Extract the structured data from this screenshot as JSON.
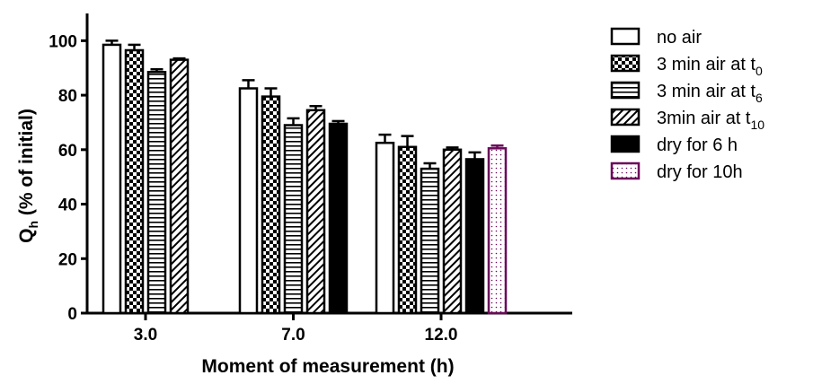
{
  "chart_data": {
    "type": "bar",
    "xlabel": "Moment of measurement (h)",
    "ylabel_main": "Q",
    "ylabel_sub": "h",
    "ylabel_rest": " (% of initial)",
    "ylim": [
      0,
      110
    ],
    "yticks": [
      "0",
      "20",
      "40",
      "60",
      "80",
      "100"
    ],
    "categories": [
      "3.0",
      "7.0",
      "12.0"
    ],
    "legend_position": "right",
    "series": [
      {
        "label_main": "no air",
        "label_sub": "",
        "pattern": "white",
        "color": "#000000",
        "values": [
          98.5,
          82.5,
          62.5
        ],
        "errors": [
          1.5,
          3.0,
          3.0
        ]
      },
      {
        "label_main": "3 min air at t",
        "label_sub": "0",
        "pattern": "checker",
        "color": "#000000",
        "values": [
          96.5,
          79.5,
          61.0
        ],
        "errors": [
          2.0,
          3.0,
          4.0
        ]
      },
      {
        "label_main": "3 min air at t",
        "label_sub": "6",
        "pattern": "hlines",
        "color": "#000000",
        "values": [
          88.5,
          69.0,
          53.0
        ],
        "errors": [
          1.0,
          2.5,
          2.0
        ]
      },
      {
        "label_main": "3min air at t",
        "label_sub": "10",
        "pattern": "diag",
        "color": "#000000",
        "values": [
          93.0,
          74.5,
          60.0
        ],
        "errors": [
          0.5,
          1.5,
          0.8
        ]
      },
      {
        "label_main": "dry for 6 h",
        "label_sub": "",
        "pattern": "solid",
        "color": "#000000",
        "values": [
          null,
          69.5,
          56.5
        ],
        "errors": [
          null,
          1.0,
          2.5
        ]
      },
      {
        "label_main": "dry for 10h",
        "label_sub": "",
        "pattern": "dots",
        "color": "#6b0a5a",
        "values": [
          null,
          null,
          60.5
        ],
        "errors": [
          null,
          null,
          1.0
        ]
      }
    ]
  }
}
